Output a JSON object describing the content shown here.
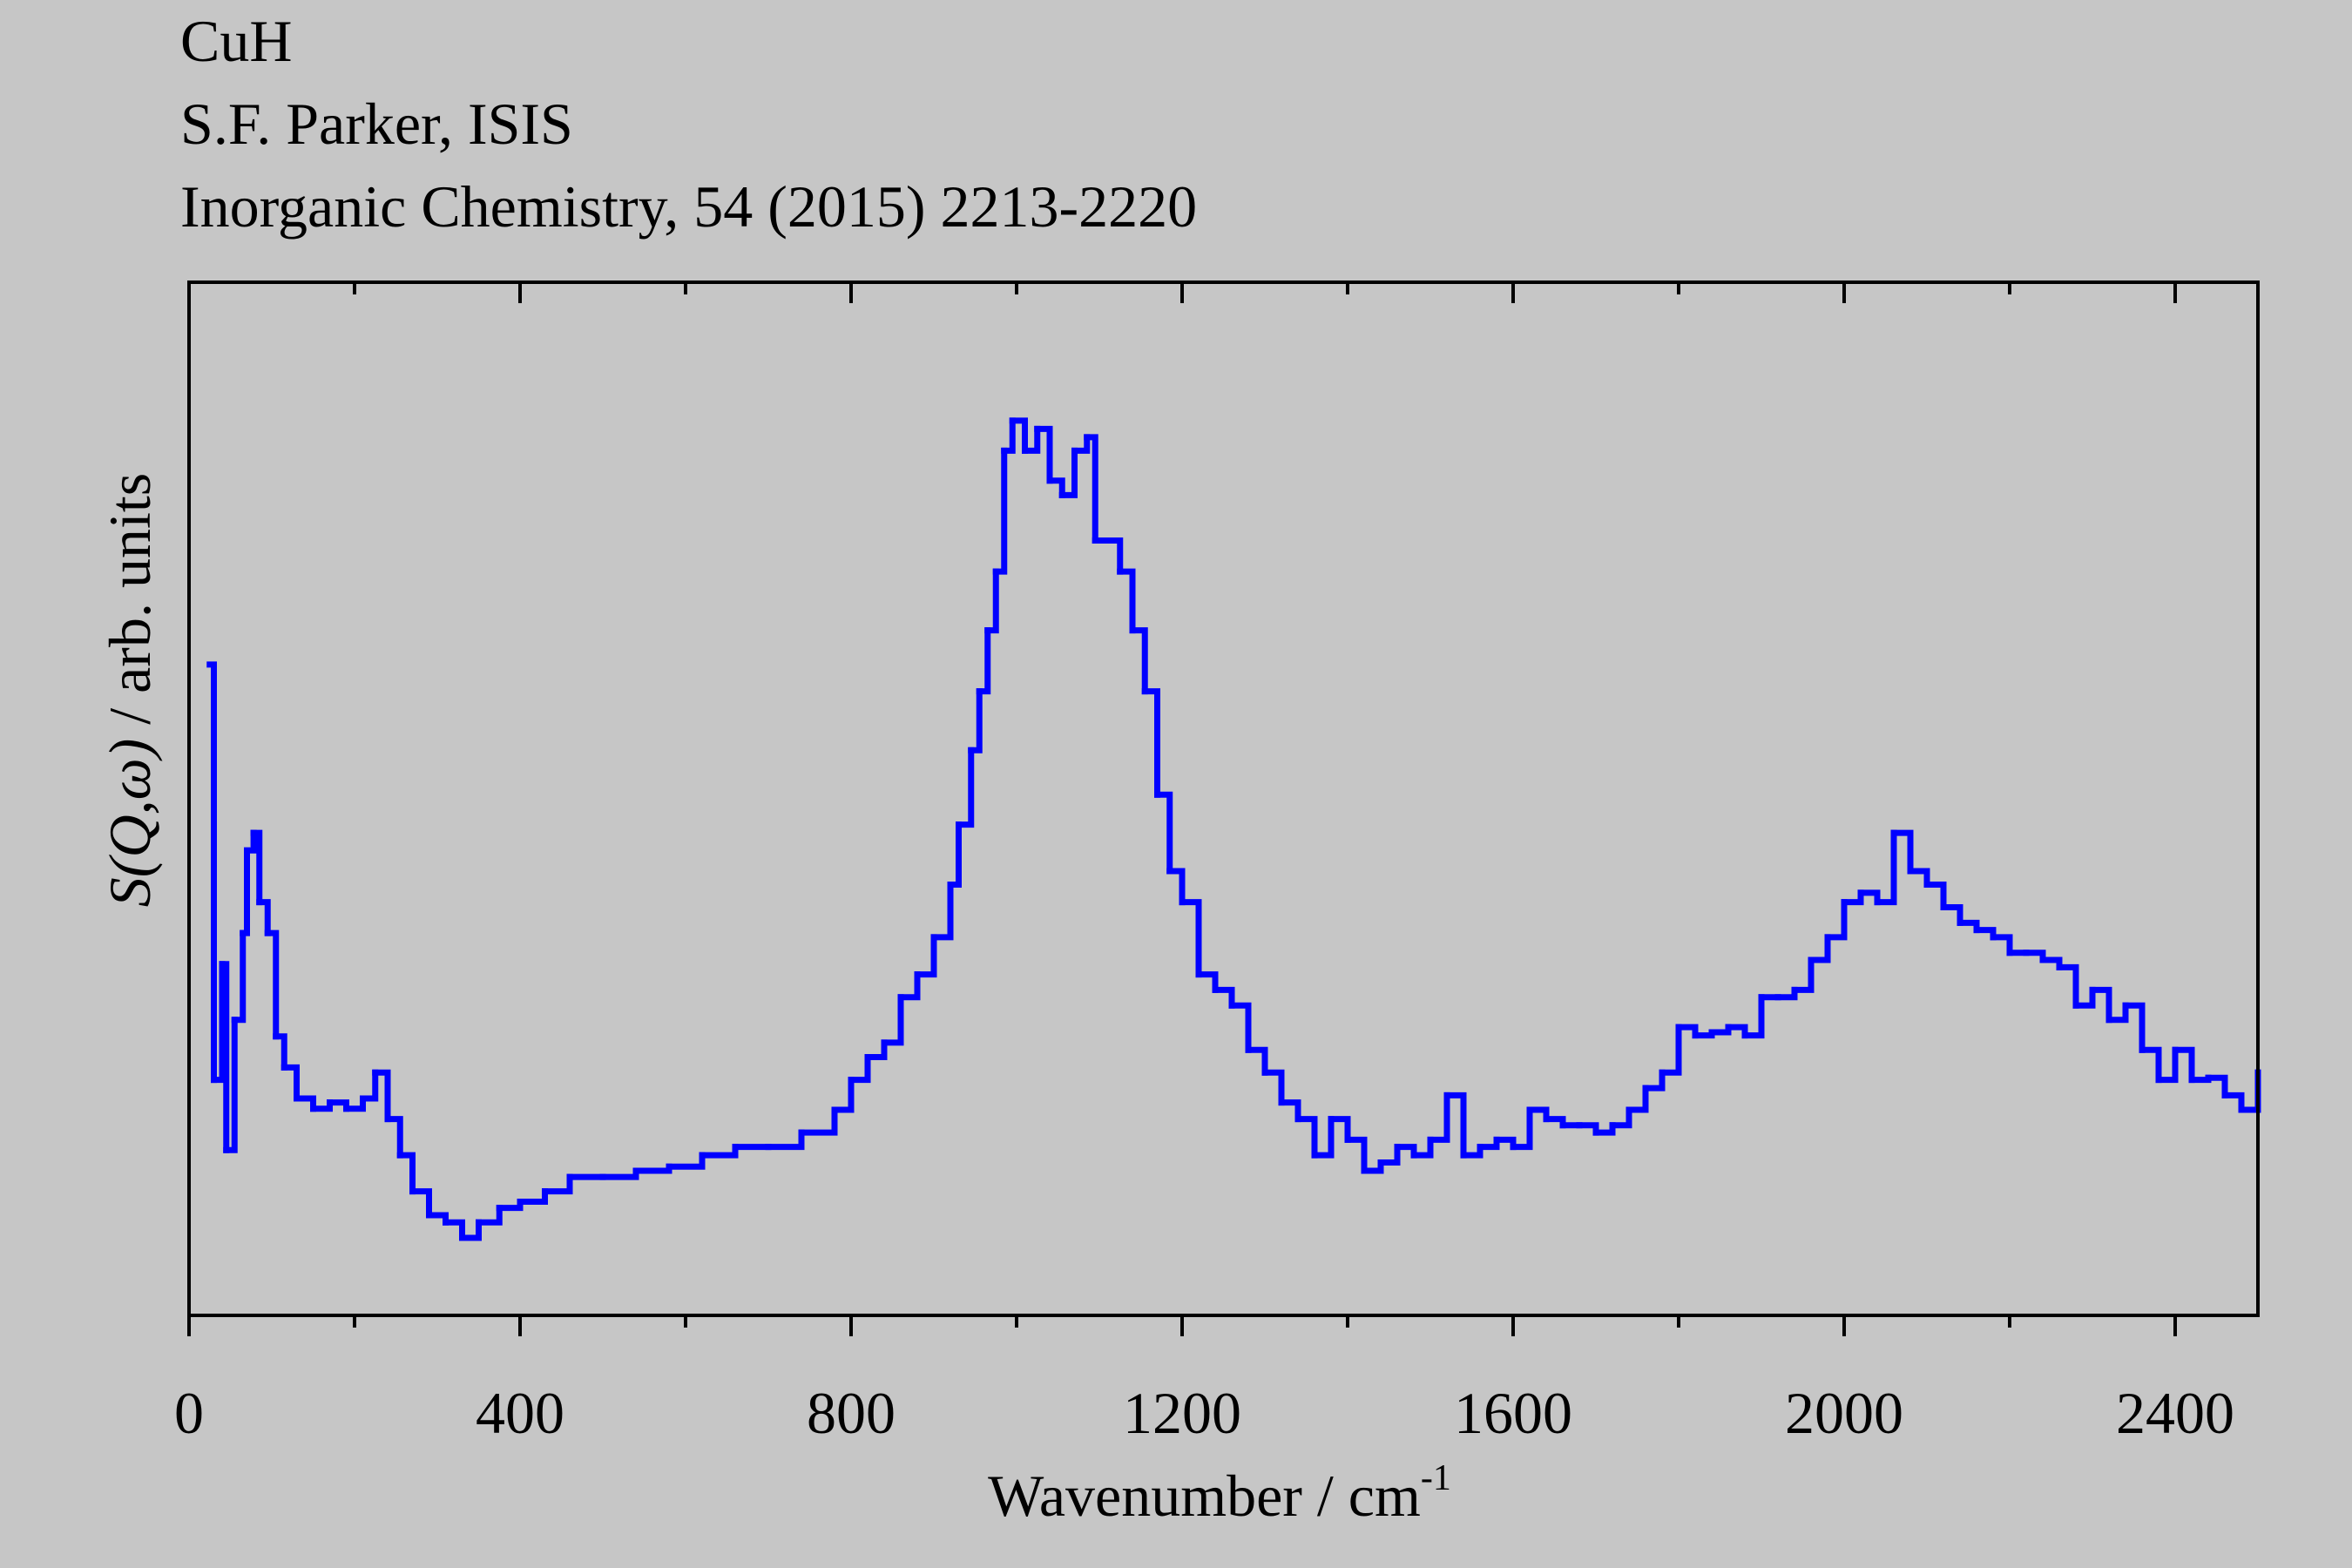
{
  "chart_data": {
    "type": "line",
    "step": "post",
    "title_lines": [
      "CuH",
      "S.F. Parker, ISIS",
      "Inorganic Chemistry, 54 (2015) 2213-2220"
    ],
    "xlabel": "Wavenumber / cm",
    "xlabel_superscript": "-1",
    "ylabel_parts": [
      "S(Q,ω)",
      "/ arb. units"
    ],
    "xlim": [
      0,
      2500
    ],
    "xticks": [
      0,
      400,
      800,
      1200,
      1600,
      2000,
      2400
    ],
    "xminorticks": [
      200,
      600,
      1000,
      1400,
      1800,
      2200
    ],
    "ylim": [
      0,
      100
    ],
    "x": [
      25,
      30,
      40,
      45,
      55,
      65,
      70,
      78,
      85,
      95,
      105,
      115,
      130,
      150,
      170,
      190,
      210,
      225,
      240,
      255,
      270,
      290,
      310,
      330,
      350,
      375,
      400,
      430,
      460,
      500,
      540,
      580,
      620,
      660,
      700,
      740,
      780,
      800,
      820,
      840,
      860,
      880,
      900,
      920,
      930,
      945,
      955,
      965,
      975,
      985,
      995,
      1010,
      1025,
      1040,
      1055,
      1070,
      1085,
      1095,
      1110,
      1125,
      1140,
      1155,
      1170,
      1185,
      1200,
      1220,
      1240,
      1260,
      1280,
      1300,
      1320,
      1340,
      1360,
      1380,
      1400,
      1420,
      1440,
      1460,
      1480,
      1500,
      1520,
      1540,
      1560,
      1580,
      1600,
      1620,
      1640,
      1660,
      1680,
      1700,
      1720,
      1740,
      1760,
      1780,
      1800,
      1820,
      1840,
      1860,
      1880,
      1900,
      1920,
      1940,
      1960,
      1980,
      2000,
      2020,
      2040,
      2060,
      2080,
      2100,
      2120,
      2140,
      2160,
      2180,
      2200,
      2220,
      2240,
      2260,
      2280,
      2300,
      2320,
      2340,
      2360,
      2380,
      2400,
      2420,
      2440,
      2460,
      2480,
      2500
    ],
    "series": [
      {
        "color": "#0000ff",
        "values": [
          63,
          22.8,
          34,
          16,
          28.6,
          37,
          45,
          46.7,
          40,
          37,
          27,
          24,
          21,
          20,
          20.6,
          20,
          21,
          23.5,
          19,
          15.5,
          12,
          9.7,
          9,
          7.5,
          9,
          10.4,
          11,
          12,
          13.4,
          13.4,
          14,
          14.4,
          15.5,
          16.3,
          16.3,
          17.7,
          19.9,
          22.8,
          25,
          26.4,
          30.8,
          33,
          36.6,
          41.7,
          47.5,
          54.7,
          60.4,
          66.3,
          72,
          83.7,
          86.6,
          83.7,
          85.8,
          80.8,
          79.4,
          83.7,
          85,
          75,
          75,
          72,
          66.3,
          60.4,
          50.4,
          43,
          40,
          33,
          31.5,
          30,
          25.7,
          23.5,
          20.6,
          19,
          15.5,
          19,
          17,
          14,
          14.8,
          16.3,
          15.5,
          17,
          21.3,
          15.5,
          16.3,
          17,
          16.3,
          19.9,
          19,
          18.4,
          18.4,
          17.7,
          18.4,
          19.9,
          22,
          23.5,
          27.9,
          27.1,
          27.4,
          27.9,
          27.1,
          30.8,
          30.8,
          31.5,
          34.4,
          36.6,
          40,
          40.9,
          40,
          46.7,
          43,
          41.7,
          39.5,
          38,
          37.3,
          36.6,
          35.1,
          35.1,
          34.4,
          33.7,
          30,
          31.5,
          28.6,
          30,
          25.7,
          22.8,
          25.7,
          22.8,
          23,
          21.3,
          19.9,
          23.5
        ]
      }
    ]
  }
}
